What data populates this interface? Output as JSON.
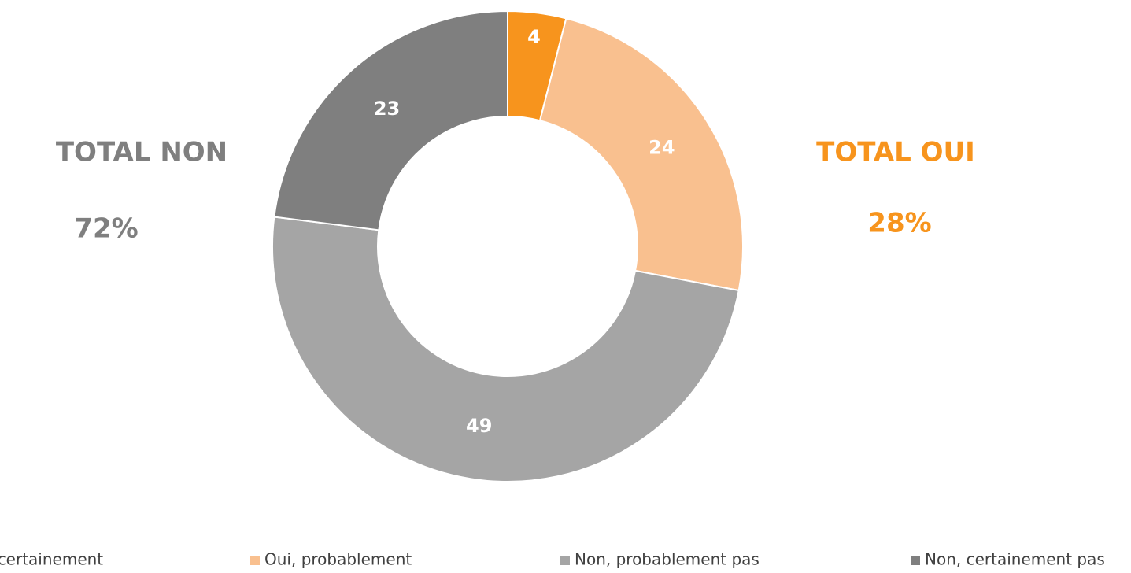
{
  "chart_data": {
    "type": "donut",
    "categories": [
      "Oui, certainement",
      "Oui, probablement",
      "Non, probablement pas",
      "Non, certainement pas"
    ],
    "values": [
      4,
      24,
      49,
      23
    ],
    "colors": [
      "#f7941d",
      "#f9c08f",
      "#a5a5a5",
      "#7f7f7f"
    ],
    "annotations": [
      {
        "text": "TOTAL NON",
        "color": "#7f7f7f"
      },
      {
        "text": "72%",
        "color": "#7f7f7f"
      },
      {
        "text": "TOTAL OUI",
        "color": "#f7941d"
      },
      {
        "text": "28%",
        "color": "#f7941d"
      }
    ],
    "legend": "bottom"
  }
}
